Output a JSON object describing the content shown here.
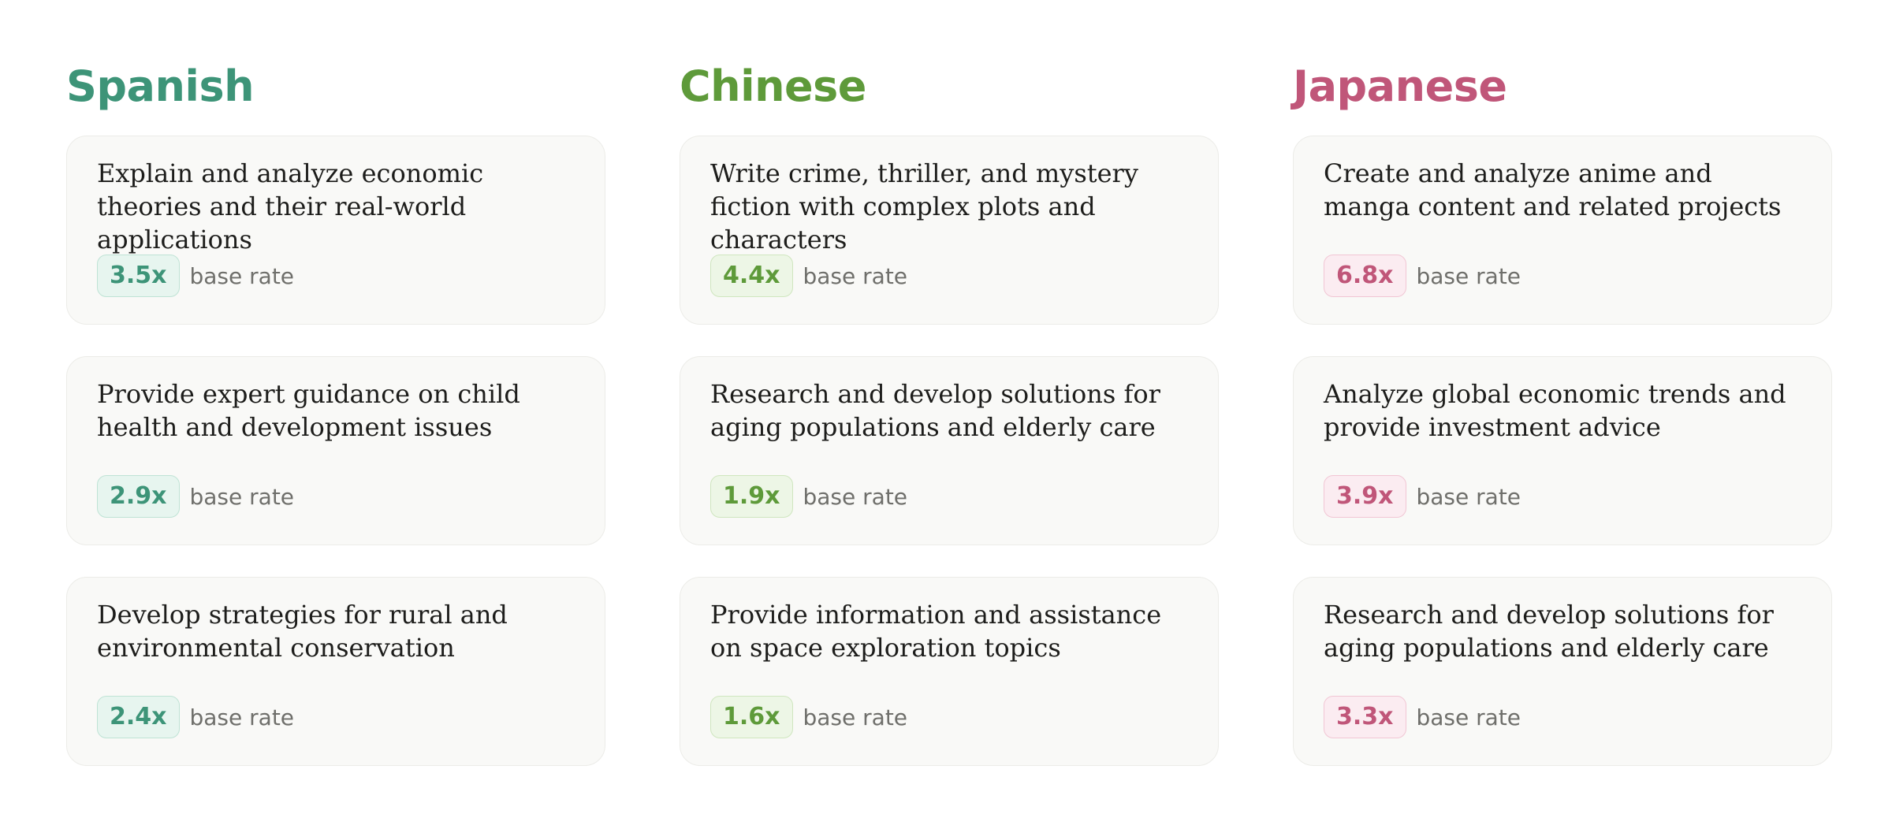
{
  "columns": [
    {
      "name": "Spanish",
      "colors": {
        "heading": "#3d9478",
        "badge_text": "#3d9478",
        "badge_bg": "#e7f5ef",
        "badge_border": "#bfe3d5"
      },
      "cards": [
        {
          "text": "Explain and analyze economic theories and their real-world applications",
          "rate": "3.5x",
          "rate_label": "base rate"
        },
        {
          "text": "Provide expert guidance on child health and development issues",
          "rate": "2.9x",
          "rate_label": "base rate"
        },
        {
          "text": "Develop strategies for rural and environmental conservation",
          "rate": "2.4x",
          "rate_label": "base rate"
        }
      ]
    },
    {
      "name": "Chinese",
      "colors": {
        "heading": "#5e9a3a",
        "badge_text": "#5e9a3a",
        "badge_bg": "#edf6e6",
        "badge_border": "#cfe6bf"
      },
      "cards": [
        {
          "text": "Write crime, thriller, and mystery fiction with complex plots and characters",
          "rate": "4.4x",
          "rate_label": "base rate"
        },
        {
          "text": "Research and develop solutions for aging populations and elderly care",
          "rate": "1.9x",
          "rate_label": "base rate"
        },
        {
          "text": "Provide information and assistance on space exploration topics",
          "rate": "1.6x",
          "rate_label": "base rate"
        }
      ]
    },
    {
      "name": "Japanese",
      "colors": {
        "heading": "#c05679",
        "badge_text": "#c05679",
        "badge_bg": "#fbecf1",
        "badge_border": "#f1c6d4"
      },
      "cards": [
        {
          "text": "Create and analyze anime and manga content and related projects",
          "rate": "6.8x",
          "rate_label": "base rate"
        },
        {
          "text": "Analyze global economic trends and provide investment advice",
          "rate": "3.9x",
          "rate_label": "base rate"
        },
        {
          "text": "Research and develop solutions for aging populations and elderly care",
          "rate": "3.3x",
          "rate_label": "base rate"
        }
      ]
    }
  ]
}
